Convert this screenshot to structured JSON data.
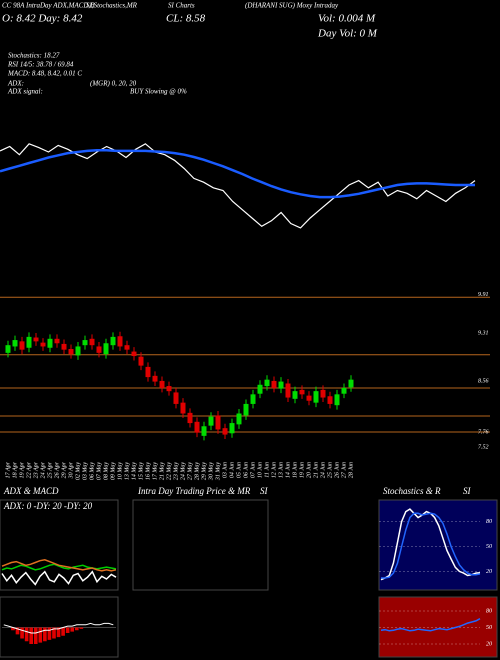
{
  "header": {
    "line1": "CC 98A IntraDay ADX,MACD,B",
    "line1b": "SI,Stochastics,MR",
    "line1c": "SI Charts",
    "line1d": "(DHARANI SUG) Moxy Intraday",
    "open": "O: 8.42  Day: 8.42",
    "close": "CL: 8.58",
    "vol": "Vol: 0.004  M",
    "dayvol": "Day Vol: 0   M",
    "stoch": "Stochastics: 18.27",
    "rsi": "RSI 14/5: 38.78 / 69.84",
    "macd": "MACD: 8.48, 8.42, 0.01 C",
    "adx": "ADX:",
    "adx_vals": "(MGR) 0, 20, 20",
    "adx_signal": "ADX  signal:",
    "signal": "BUY Slowing @ 0%"
  },
  "intraday": {
    "title": "Intra  Day Trading Price  & MR",
    "title_end": "SI"
  },
  "chart_data": [
    {
      "type": "line",
      "ylim": [
        7.5,
        9.5
      ],
      "series": [
        {
          "color": "#ffffff",
          "values": [
            9.12,
            9.2,
            9.05,
            9.25,
            9.18,
            9.1,
            9.22,
            9.15,
            9.05,
            8.98,
            9.1,
            9.2,
            9.12,
            9,
            9.15,
            9.25,
            9.1,
            9.05,
            8.95,
            8.8,
            8.62,
            8.55,
            8.45,
            8.4,
            8.2,
            8.05,
            7.9,
            7.75,
            7.85,
            8,
            7.8,
            7.72,
            7.9,
            8.05,
            8.2,
            8.35,
            8.5,
            8.58,
            8.45,
            8.55,
            8.3,
            8.4,
            8.35,
            8.25,
            8.4,
            8.3,
            8.2,
            8.35,
            8.45,
            8.58
          ]
        },
        {
          "color": "#1a5cff",
          "values": [
            8.75,
            8.8,
            8.85,
            8.9,
            8.95,
            9,
            9.04,
            9.08,
            9.1,
            9.12,
            9.13,
            9.13,
            9.12,
            9.12,
            9.12,
            9.12,
            9.11,
            9.1,
            9.08,
            9.05,
            9.01,
            8.96,
            8.9,
            8.84,
            8.77,
            8.7,
            8.62,
            8.55,
            8.48,
            8.42,
            8.37,
            8.33,
            8.3,
            8.28,
            8.28,
            8.29,
            8.31,
            8.34,
            8.38,
            8.42,
            8.46,
            8.5,
            8.52,
            8.53,
            8.53,
            8.52,
            8.51,
            8.5,
            8.5,
            8.5
          ]
        }
      ]
    },
    {
      "type": "candlestick",
      "ylim": [
        7.4,
        10.0
      ],
      "yticks": [
        9.91,
        9.31,
        8.56,
        7.76,
        7.52
      ],
      "levels": [
        9.87,
        8.97,
        8.45,
        8.01,
        7.76
      ],
      "level_color": "#b5651d",
      "up_color": "#00dd00",
      "down_color": "#e00000",
      "categories": [
        "17 Apr",
        "18 Apr",
        "19 Apr",
        "22 Apr",
        "23 Apr",
        "24 Apr",
        "25 Apr",
        "26 Apr",
        "29 Apr",
        "30 Apr",
        "02 May",
        "03 May",
        "06 May",
        "07 May",
        "08 May",
        "09 May",
        "10 May",
        "13 May",
        "14 May",
        "15 May",
        "16 May",
        "17 May",
        "21 May",
        "22 May",
        "23 May",
        "24 May",
        "27 May",
        "28 May",
        "29 May",
        "30 May",
        "31 May",
        "03 Jun",
        "04 Jun",
        "05 Jun",
        "06 Jun",
        "07 Jun",
        "10 Jun",
        "11 Jun",
        "12 Jun",
        "13 Jun",
        "14 Jun",
        "18 Jun",
        "19 Jun",
        "20 Jun",
        "21 Jun",
        "24 Jun",
        "25 Jun",
        "26 Jun",
        "27 Jun",
        "28 Jun"
      ],
      "open": [
        9,
        9.1,
        9.18,
        9.08,
        9.24,
        9.16,
        9.08,
        9.22,
        9.14,
        9.06,
        8.96,
        9.12,
        9.22,
        9.1,
        8.98,
        9.12,
        9.26,
        9.12,
        9.02,
        8.94,
        8.78,
        8.64,
        8.56,
        8.48,
        8.38,
        8.22,
        8.06,
        7.92,
        7.7,
        7.86,
        8.02,
        7.82,
        7.74,
        7.88,
        8.02,
        8.2,
        8.36,
        8.48,
        8.56,
        8.44,
        8.52,
        8.28,
        8.42,
        8.33,
        8.22,
        8.42,
        8.32,
        8.18,
        8.36,
        8.46
      ],
      "high": [
        9.19,
        9.27,
        9.25,
        9.32,
        9.31,
        9.23,
        9.29,
        9.29,
        9.21,
        9.13,
        9.17,
        9.27,
        9.29,
        9.17,
        9.22,
        9.32,
        9.33,
        9.19,
        9.09,
        9.01,
        8.85,
        8.71,
        8.63,
        8.55,
        8.45,
        8.29,
        8.13,
        7.99,
        7.92,
        8.07,
        8.09,
        7.89,
        7.97,
        8.12,
        8.27,
        8.42,
        8.57,
        8.65,
        8.63,
        8.62,
        8.59,
        8.47,
        8.49,
        8.4,
        8.47,
        8.49,
        8.39,
        8.42,
        8.52,
        8.65
      ],
      "low": [
        8.93,
        9.03,
        8.98,
        9.01,
        9.11,
        9.03,
        9.01,
        9.08,
        8.98,
        8.91,
        8.89,
        9.05,
        9.05,
        8.93,
        8.91,
        9.05,
        9.03,
        8.98,
        8.88,
        8.73,
        8.55,
        8.48,
        8.38,
        8.33,
        8.13,
        7.98,
        7.83,
        7.68,
        7.63,
        7.79,
        7.73,
        7.65,
        7.67,
        7.81,
        7.95,
        8.13,
        8.29,
        8.41,
        8.38,
        8.37,
        8.23,
        8.21,
        8.28,
        8.18,
        8.15,
        8.23,
        8.13,
        8.11,
        8.29,
        8.39
      ],
      "close": [
        9.12,
        9.2,
        9.05,
        9.25,
        9.18,
        9.1,
        9.22,
        9.15,
        9.05,
        8.98,
        9.1,
        9.2,
        9.12,
        9,
        9.15,
        9.25,
        9.1,
        9.05,
        8.95,
        8.8,
        8.62,
        8.55,
        8.45,
        8.4,
        8.2,
        8.05,
        7.9,
        7.75,
        7.85,
        8,
        7.8,
        7.72,
        7.9,
        8.05,
        8.2,
        8.35,
        8.5,
        8.58,
        8.45,
        8.55,
        8.3,
        8.4,
        8.35,
        8.25,
        8.4,
        8.3,
        8.2,
        8.35,
        8.45,
        8.58
      ]
    },
    {
      "type": "line",
      "title": "ADX  & MACD",
      "subtitle": "ADX: 0  -DY: 20  -DY: 20",
      "ylim": [
        0,
        60
      ],
      "series": [
        {
          "color": "#00cc00",
          "values": [
            22,
            24,
            23,
            25,
            27,
            26,
            24,
            22,
            23,
            25,
            27,
            28,
            26,
            24,
            23,
            25,
            26,
            27,
            25,
            24,
            23,
            24,
            25,
            24,
            23
          ]
        },
        {
          "color": "#e07020",
          "values": [
            26,
            28,
            30,
            31,
            29,
            27,
            28,
            30,
            32,
            33,
            31,
            29,
            27,
            26,
            25,
            24,
            23,
            22,
            23,
            24,
            22,
            21,
            22,
            21,
            22
          ]
        },
        {
          "color": "#ffffff",
          "values": [
            18,
            10,
            16,
            8,
            14,
            19,
            12,
            6,
            15,
            20,
            11,
            9,
            17,
            13,
            7,
            16,
            18,
            10,
            14,
            20,
            9,
            15,
            12,
            17,
            14
          ]
        }
      ]
    },
    {
      "type": "bar",
      "ylim": [
        -0.2,
        0.2
      ],
      "color": "#e00000",
      "line_color": "#ffffff",
      "values": [
        0,
        0,
        -0.02,
        -0.05,
        -0.08,
        -0.1,
        -0.12,
        -0.12,
        -0.11,
        -0.1,
        -0.09,
        -0.08,
        -0.07,
        -0.06,
        -0.04,
        -0.03,
        -0.02,
        -0.01,
        0,
        0,
        0,
        0,
        0,
        0,
        0
      ],
      "line": [
        0.02,
        0.01,
        0,
        -0.01,
        -0.02,
        -0.03,
        -0.04,
        -0.04,
        -0.03,
        -0.02,
        -0.02,
        -0.01,
        -0.01,
        0,
        0.01,
        0.01,
        0.02,
        0.02,
        0.02,
        0.03,
        0.02,
        0.02,
        0.03,
        0.03,
        0.02
      ]
    },
    {
      "type": "line",
      "title": "Stochastics & R",
      "title_end": "SI",
      "ylim": [
        0,
        100
      ],
      "yticks": [
        80,
        50,
        20
      ],
      "background": "#00005a",
      "series": [
        {
          "color": "#ffffff",
          "values": [
            10,
            12,
            15,
            30,
            55,
            80,
            92,
            95,
            90,
            85,
            88,
            92,
            90,
            85,
            75,
            60,
            45,
            35,
            25,
            20,
            18,
            15,
            16,
            18,
            18.27
          ]
        },
        {
          "color": "#2266ff",
          "values": [
            12,
            12,
            13,
            18,
            30,
            50,
            70,
            85,
            90,
            90,
            88,
            89,
            90,
            89,
            85,
            78,
            65,
            50,
            38,
            28,
            22,
            18,
            16,
            16,
            17
          ]
        }
      ]
    },
    {
      "type": "line",
      "ylim": [
        0,
        100
      ],
      "yticks": [
        80,
        50,
        20
      ],
      "background": "#990000",
      "series": [
        {
          "color": "#2266ff",
          "values": [
            45,
            46,
            44,
            45,
            47,
            48,
            46,
            44,
            45,
            47,
            46,
            45,
            44,
            46,
            48,
            47,
            46,
            48,
            50,
            52,
            55,
            58,
            60,
            62,
            66
          ]
        }
      ]
    }
  ]
}
